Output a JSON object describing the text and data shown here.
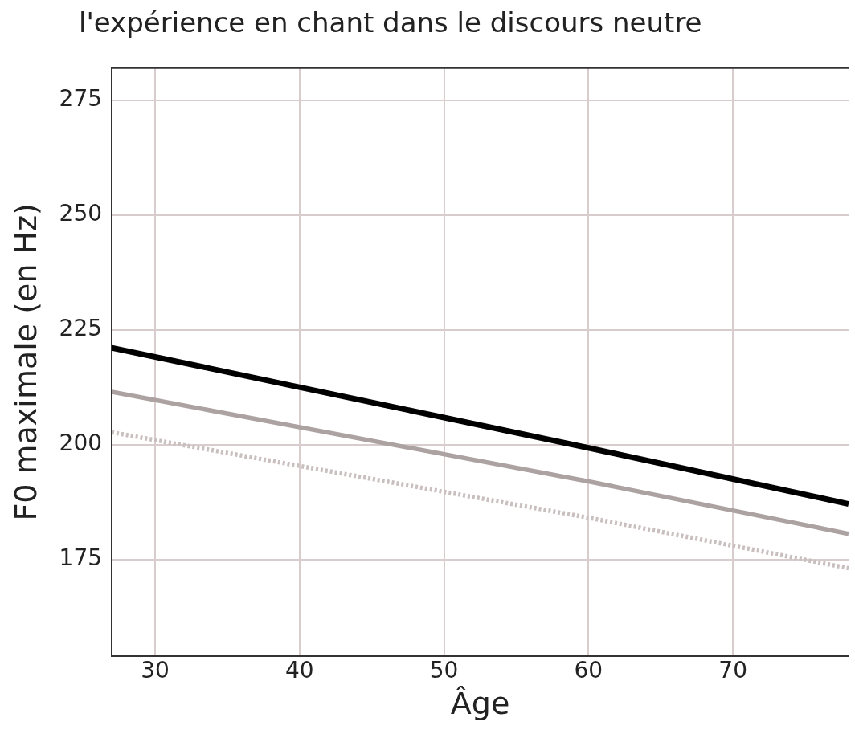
{
  "chart_data": {
    "type": "line",
    "title": "l'expérience en chant dans le discours neutre",
    "xlabel": "Âge",
    "ylabel": "F0 maximale (en Hz)",
    "x": [
      27,
      60,
      78
    ],
    "series": [
      {
        "color": "#000000",
        "values": [
          221.1,
          199.3,
          187.1
        ]
      },
      {
        "color": "#aca2a2",
        "values": [
          211.5,
          192,
          180.6
        ]
      },
      {
        "color": "#c9bfbf",
        "line_style": "dotted",
        "values": [
          202.7,
          184.1,
          173.1
        ]
      }
    ],
    "xlim": [
      27,
      78
    ],
    "xticks": [
      30,
      40,
      50,
      60,
      70
    ],
    "ylim": [
      154,
      282
    ],
    "yticks": [
      175,
      200,
      225,
      250,
      275
    ],
    "grid": true,
    "legend": false,
    "marker": "none"
  }
}
